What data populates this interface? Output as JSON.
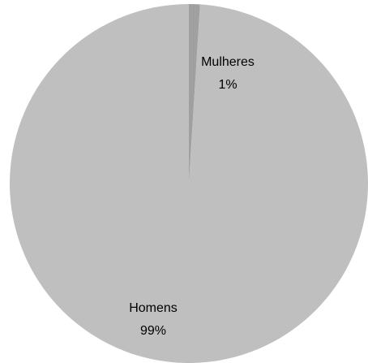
{
  "chart_data": {
    "type": "pie",
    "categories": [
      "Mulheres",
      "Homens"
    ],
    "values": [
      1,
      99
    ],
    "value_labels": [
      "1%",
      "99%"
    ],
    "colors": [
      "#a0a0a0",
      "#bfbfbf"
    ]
  }
}
